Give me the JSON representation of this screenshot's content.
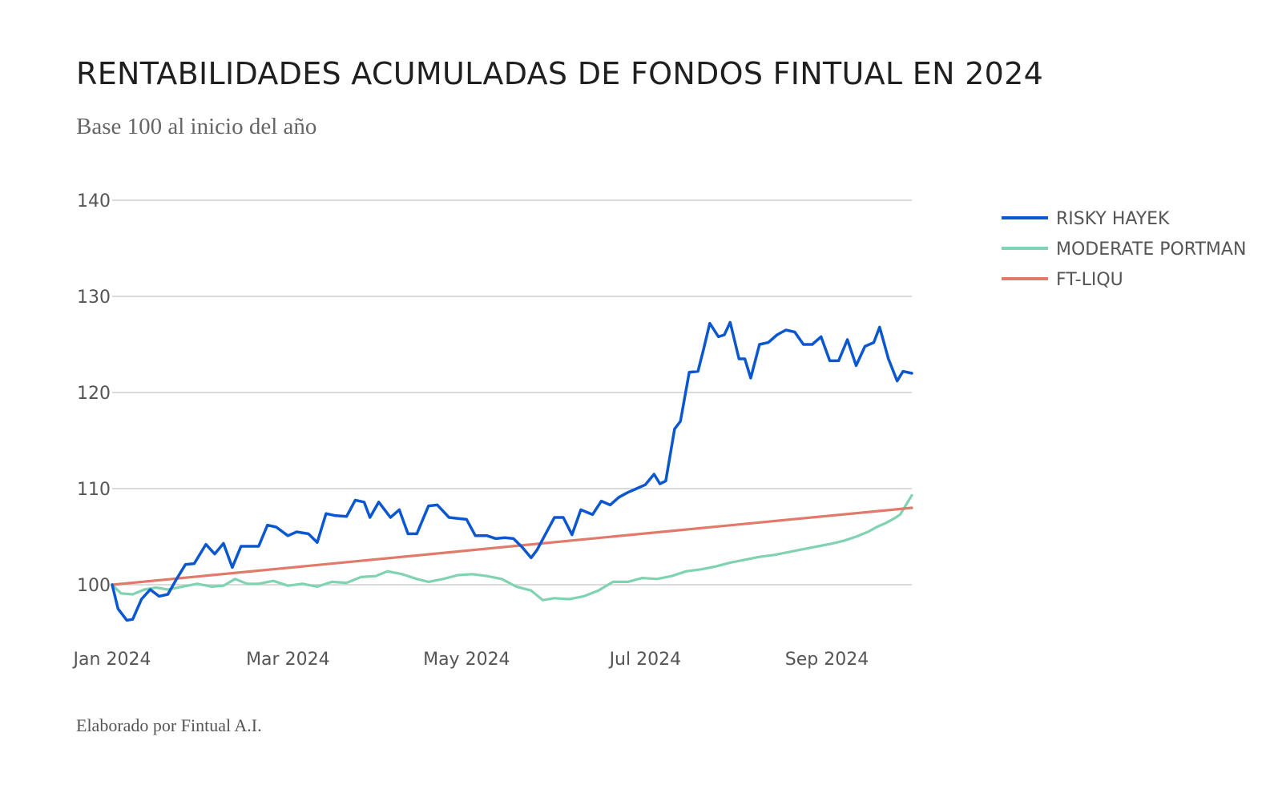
{
  "page": {
    "title": "RENTABILIDADES ACUMULADAS DE FONDOS FINTUAL EN 2024",
    "subtitle": "Base 100 al inicio del año",
    "footer": "Elaborado por Fintual A.I."
  },
  "chart_data": {
    "type": "line",
    "title": "RENTABILIDADES ACUMULADAS DE FONDOS FINTUAL EN 2024",
    "subtitle": "Base 100 al inicio del año",
    "xlabel": "",
    "ylabel": "",
    "x_tick_labels": [
      "Jan 2024",
      "Mar 2024",
      "May 2024",
      "Jul 2024",
      "Sep 2024"
    ],
    "x_ticks": [
      "2024-01-01",
      "2024-03-01",
      "2024-05-01",
      "2024-07-01",
      "2024-09-01"
    ],
    "y_ticks": [
      100,
      110,
      120,
      130,
      140
    ],
    "xlim": [
      "2024-01-01",
      "2024-09-30"
    ],
    "ylim": [
      95,
      142
    ],
    "grid": true,
    "legend_position": "right-top",
    "series": [
      {
        "name": "RISKY HAYEK",
        "color": "#0b57d0",
        "points": [
          [
            "2024-01-01",
            100
          ],
          [
            "2024-01-03",
            97.5
          ],
          [
            "2024-01-06",
            96.3
          ],
          [
            "2024-01-08",
            96.4
          ],
          [
            "2024-01-11",
            98.5
          ],
          [
            "2024-01-14",
            99.5
          ],
          [
            "2024-01-17",
            98.8
          ],
          [
            "2024-01-20",
            99.0
          ],
          [
            "2024-01-23",
            100.6
          ],
          [
            "2024-01-26",
            102.1
          ],
          [
            "2024-01-29",
            102.2
          ],
          [
            "2024-02-02",
            104.2
          ],
          [
            "2024-02-05",
            103.2
          ],
          [
            "2024-02-08",
            104.3
          ],
          [
            "2024-02-11",
            101.8
          ],
          [
            "2024-02-14",
            104.0
          ],
          [
            "2024-02-17",
            104.0
          ],
          [
            "2024-02-20",
            104.0
          ],
          [
            "2024-02-23",
            106.2
          ],
          [
            "2024-02-26",
            106.0
          ],
          [
            "2024-03-01",
            105.1
          ],
          [
            "2024-03-04",
            105.5
          ],
          [
            "2024-03-08",
            105.3
          ],
          [
            "2024-03-11",
            104.4
          ],
          [
            "2024-03-14",
            107.4
          ],
          [
            "2024-03-17",
            107.2
          ],
          [
            "2024-03-21",
            107.1
          ],
          [
            "2024-03-24",
            108.8
          ],
          [
            "2024-03-27",
            108.6
          ],
          [
            "2024-03-29",
            107.0
          ],
          [
            "2024-04-01",
            108.6
          ],
          [
            "2024-04-05",
            107.0
          ],
          [
            "2024-04-08",
            107.8
          ],
          [
            "2024-04-11",
            105.3
          ],
          [
            "2024-04-14",
            105.3
          ],
          [
            "2024-04-18",
            108.2
          ],
          [
            "2024-04-21",
            108.3
          ],
          [
            "2024-04-25",
            107.0
          ],
          [
            "2024-04-28",
            106.9
          ],
          [
            "2024-05-01",
            106.8
          ],
          [
            "2024-05-04",
            105.1
          ],
          [
            "2024-05-08",
            105.1
          ],
          [
            "2024-05-11",
            104.8
          ],
          [
            "2024-05-14",
            104.9
          ],
          [
            "2024-05-17",
            104.8
          ],
          [
            "2024-05-20",
            103.9
          ],
          [
            "2024-05-23",
            102.8
          ],
          [
            "2024-05-25",
            103.6
          ],
          [
            "2024-05-28",
            105.3
          ],
          [
            "2024-05-31",
            107.0
          ],
          [
            "2024-06-03",
            107.0
          ],
          [
            "2024-06-06",
            105.2
          ],
          [
            "2024-06-09",
            107.8
          ],
          [
            "2024-06-13",
            107.3
          ],
          [
            "2024-06-16",
            108.7
          ],
          [
            "2024-06-19",
            108.3
          ],
          [
            "2024-06-22",
            109.1
          ],
          [
            "2024-06-25",
            109.6
          ],
          [
            "2024-06-28",
            110.0
          ],
          [
            "2024-07-01",
            110.4
          ],
          [
            "2024-07-04",
            111.5
          ],
          [
            "2024-07-06",
            110.5
          ],
          [
            "2024-07-08",
            110.8
          ],
          [
            "2024-07-11",
            116.2
          ],
          [
            "2024-07-13",
            117.0
          ],
          [
            "2024-07-16",
            122.1
          ],
          [
            "2024-07-19",
            122.2
          ],
          [
            "2024-07-21",
            124.6
          ],
          [
            "2024-07-23",
            127.2
          ],
          [
            "2024-07-26",
            125.8
          ],
          [
            "2024-07-28",
            126.0
          ],
          [
            "2024-07-30",
            127.3
          ],
          [
            "2024-08-02",
            123.5
          ],
          [
            "2024-08-04",
            123.5
          ],
          [
            "2024-08-06",
            121.5
          ],
          [
            "2024-08-09",
            125.0
          ],
          [
            "2024-08-12",
            125.2
          ],
          [
            "2024-08-15",
            126.0
          ],
          [
            "2024-08-18",
            126.5
          ],
          [
            "2024-08-21",
            126.3
          ],
          [
            "2024-08-24",
            125.0
          ],
          [
            "2024-08-27",
            125.0
          ],
          [
            "2024-08-30",
            125.8
          ],
          [
            "2024-09-02",
            123.3
          ],
          [
            "2024-09-05",
            123.3
          ],
          [
            "2024-09-08",
            125.5
          ],
          [
            "2024-09-11",
            122.8
          ],
          [
            "2024-09-14",
            124.8
          ],
          [
            "2024-09-17",
            125.2
          ],
          [
            "2024-09-19",
            126.8
          ],
          [
            "2024-09-22",
            123.5
          ],
          [
            "2024-09-25",
            121.2
          ],
          [
            "2024-09-27",
            122.2
          ],
          [
            "2024-09-30",
            122.0
          ]
        ]
      },
      {
        "name": "MODERATE PORTMAN",
        "color": "#7fd3b0",
        "points": [
          [
            "2024-01-01",
            100
          ],
          [
            "2024-01-04",
            99.1
          ],
          [
            "2024-01-08",
            99.0
          ],
          [
            "2024-01-12",
            99.5
          ],
          [
            "2024-01-16",
            99.7
          ],
          [
            "2024-01-20",
            99.5
          ],
          [
            "2024-01-25",
            99.8
          ],
          [
            "2024-01-30",
            100.1
          ],
          [
            "2024-02-04",
            99.8
          ],
          [
            "2024-02-08",
            99.9
          ],
          [
            "2024-02-12",
            100.6
          ],
          [
            "2024-02-16",
            100.1
          ],
          [
            "2024-02-20",
            100.1
          ],
          [
            "2024-02-25",
            100.4
          ],
          [
            "2024-03-01",
            99.9
          ],
          [
            "2024-03-06",
            100.1
          ],
          [
            "2024-03-11",
            99.8
          ],
          [
            "2024-03-16",
            100.3
          ],
          [
            "2024-03-21",
            100.2
          ],
          [
            "2024-03-26",
            100.8
          ],
          [
            "2024-03-31",
            100.9
          ],
          [
            "2024-04-04",
            101.4
          ],
          [
            "2024-04-09",
            101.1
          ],
          [
            "2024-04-14",
            100.6
          ],
          [
            "2024-04-18",
            100.3
          ],
          [
            "2024-04-23",
            100.6
          ],
          [
            "2024-04-28",
            101.0
          ],
          [
            "2024-05-03",
            101.1
          ],
          [
            "2024-05-08",
            100.9
          ],
          [
            "2024-05-13",
            100.6
          ],
          [
            "2024-05-18",
            99.8
          ],
          [
            "2024-05-23",
            99.4
          ],
          [
            "2024-05-27",
            98.4
          ],
          [
            "2024-05-31",
            98.6
          ],
          [
            "2024-06-05",
            98.5
          ],
          [
            "2024-06-10",
            98.8
          ],
          [
            "2024-06-15",
            99.4
          ],
          [
            "2024-06-20",
            100.3
          ],
          [
            "2024-06-25",
            100.3
          ],
          [
            "2024-06-30",
            100.7
          ],
          [
            "2024-07-05",
            100.6
          ],
          [
            "2024-07-10",
            100.9
          ],
          [
            "2024-07-15",
            101.4
          ],
          [
            "2024-07-20",
            101.6
          ],
          [
            "2024-07-25",
            101.9
          ],
          [
            "2024-07-30",
            102.3
          ],
          [
            "2024-08-04",
            102.6
          ],
          [
            "2024-08-09",
            102.9
          ],
          [
            "2024-08-14",
            103.1
          ],
          [
            "2024-08-19",
            103.4
          ],
          [
            "2024-08-24",
            103.7
          ],
          [
            "2024-08-29",
            104.0
          ],
          [
            "2024-09-03",
            104.3
          ],
          [
            "2024-09-07",
            104.6
          ],
          [
            "2024-09-11",
            105.0
          ],
          [
            "2024-09-15",
            105.5
          ],
          [
            "2024-09-18",
            106.0
          ],
          [
            "2024-09-21",
            106.4
          ],
          [
            "2024-09-24",
            106.9
          ],
          [
            "2024-09-26",
            107.3
          ],
          [
            "2024-09-28",
            108.3
          ],
          [
            "2024-09-30",
            109.3
          ]
        ]
      },
      {
        "name": "FT-LIQU",
        "color": "#e07a6a",
        "points": [
          [
            "2024-01-01",
            100.0
          ],
          [
            "2024-09-30",
            108.0
          ]
        ]
      }
    ]
  }
}
